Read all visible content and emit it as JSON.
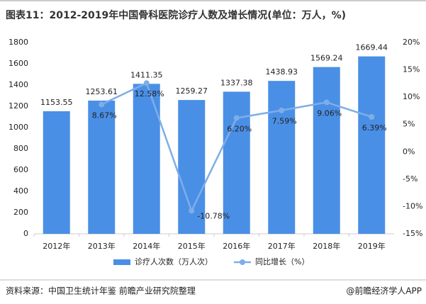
{
  "chart_data": {
    "type": "bar_line",
    "title": "图表11：2012-2019年中国骨科医院诊疗人数及增长情况(单位：万人，%)",
    "categories": [
      "2012年",
      "2013年",
      "2014年",
      "2015年",
      "2016年",
      "2017年",
      "2018年",
      "2019年"
    ],
    "series": [
      {
        "name": "诊疗人次数（万人次）",
        "color": "#4a8fe6",
        "type": "bar",
        "values": [
          1153.55,
          1253.61,
          1411.35,
          1259.27,
          1337.38,
          1438.93,
          1569.24,
          1669.44
        ]
      },
      {
        "name": "同比增长（%）",
        "color": "#7eaee6",
        "type": "line",
        "axis": "y2",
        "values": [
          null,
          8.67,
          12.58,
          -10.78,
          6.2,
          7.59,
          9.06,
          6.39
        ],
        "value_labels": [
          null,
          "8.67%",
          "12.58%",
          "-10.78%",
          "6.20%",
          "7.59%",
          "9.06%",
          "6.39%"
        ]
      }
    ],
    "ylim": [
      0,
      1800
    ],
    "yticks": [
      0,
      200,
      400,
      600,
      800,
      1000,
      1200,
      1400,
      1600,
      1800
    ],
    "y2lim": [
      -15,
      20
    ],
    "y2ticks": [
      {
        "value": -15,
        "label": "-15%"
      },
      {
        "value": -10,
        "label": "-10%"
      },
      {
        "value": -5,
        "label": "-5%"
      },
      {
        "value": 0,
        "label": "0%"
      },
      {
        "value": 5,
        "label": "5%"
      },
      {
        "value": 10,
        "label": "10%"
      },
      {
        "value": 15,
        "label": "15%"
      },
      {
        "value": 20,
        "label": "20%"
      }
    ],
    "source": "资料来源：中国卫生统计年鉴 前瞻产业研究院整理",
    "credit": "@前瞻经济学人APP"
  }
}
